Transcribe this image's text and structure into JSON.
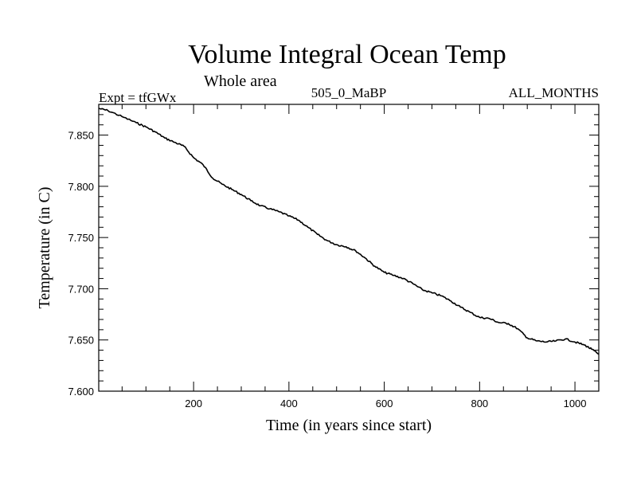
{
  "chart_data": {
    "type": "line",
    "title": "Volume Integral Ocean Temp",
    "subtitle": "Whole area",
    "left_label": "Expt = tfGWx",
    "center_label": "505_0_MaBP",
    "right_label": "ALL_MONTHS",
    "xlabel": "Time (in years since start)",
    "ylabel": "Temperature (in C)",
    "xlim": [
      1,
      1050
    ],
    "ylim": [
      7.6,
      7.88
    ],
    "x_ticks": [
      200,
      400,
      600,
      800,
      1000
    ],
    "y_ticks": [
      7.6,
      7.65,
      7.7,
      7.75,
      7.8,
      7.85
    ],
    "x_tick_labels": [
      "200",
      "400",
      "600",
      "800",
      "1000"
    ],
    "y_tick_labels": [
      "7.600",
      "7.650",
      "7.700",
      "7.750",
      "7.800",
      "7.850"
    ],
    "grid": false,
    "series": [
      {
        "name": "tfGWx",
        "x": [
          1,
          20,
          50,
          80,
          100,
          120,
          140,
          160,
          180,
          200,
          220,
          240,
          260,
          280,
          300,
          320,
          340,
          360,
          380,
          400,
          420,
          440,
          460,
          480,
          500,
          520,
          540,
          560,
          580,
          600,
          620,
          640,
          660,
          680,
          700,
          720,
          740,
          760,
          780,
          800,
          820,
          840,
          860,
          880,
          900,
          920,
          940,
          960,
          980,
          1000,
          1020,
          1035,
          1050
        ],
        "y": [
          7.876,
          7.874,
          7.868,
          7.862,
          7.858,
          7.853,
          7.847,
          7.843,
          7.839,
          7.828,
          7.821,
          7.808,
          7.802,
          7.797,
          7.792,
          7.786,
          7.781,
          7.778,
          7.775,
          7.771,
          7.767,
          7.76,
          7.753,
          7.747,
          7.743,
          7.741,
          7.737,
          7.73,
          7.722,
          7.716,
          7.713,
          7.71,
          7.705,
          7.699,
          7.696,
          7.693,
          7.688,
          7.682,
          7.677,
          7.672,
          7.671,
          7.667,
          7.666,
          7.661,
          7.652,
          7.649,
          7.648,
          7.649,
          7.651,
          7.648,
          7.645,
          7.641,
          7.636
        ]
      }
    ]
  }
}
